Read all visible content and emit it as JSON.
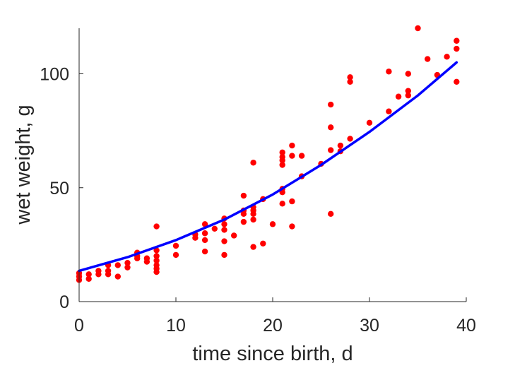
{
  "chart_data": {
    "type": "scatter",
    "title": "",
    "xlabel": "time since birth, d",
    "ylabel": "wet weight, g",
    "xlim": [
      0,
      40
    ],
    "ylim": [
      0,
      120
    ],
    "xticks": [
      0,
      10,
      20,
      30,
      40
    ],
    "yticks": [
      0,
      50,
      100
    ],
    "grid": false,
    "legend": "none",
    "series": [
      {
        "type": "scatter",
        "color": "#ff0000",
        "points": [
          [
            0,
            9.5
          ],
          [
            0,
            11
          ],
          [
            0,
            12.5
          ],
          [
            1,
            10
          ],
          [
            1,
            12
          ],
          [
            2,
            12
          ],
          [
            2,
            13.5
          ],
          [
            3,
            12
          ],
          [
            3,
            13.5
          ],
          [
            3,
            16
          ],
          [
            4,
            11
          ],
          [
            4,
            16
          ],
          [
            5,
            15
          ],
          [
            5,
            17
          ],
          [
            6,
            19
          ],
          [
            6,
            20
          ],
          [
            6,
            21.5
          ],
          [
            7,
            17.5
          ],
          [
            7,
            19
          ],
          [
            8,
            13
          ],
          [
            8,
            14.5
          ],
          [
            8,
            16
          ],
          [
            8,
            18
          ],
          [
            8,
            20
          ],
          [
            8,
            22.5
          ],
          [
            8,
            33
          ],
          [
            10,
            20.5
          ],
          [
            10,
            24.5
          ],
          [
            12,
            28
          ],
          [
            12,
            29.5
          ],
          [
            13,
            22
          ],
          [
            13,
            27
          ],
          [
            13,
            30
          ],
          [
            13,
            34
          ],
          [
            14,
            32
          ],
          [
            15,
            20.5
          ],
          [
            15,
            26.5
          ],
          [
            15,
            31.5
          ],
          [
            15,
            34
          ],
          [
            15,
            36.5
          ],
          [
            16,
            29
          ],
          [
            17,
            35
          ],
          [
            17,
            38.5
          ],
          [
            17,
            40
          ],
          [
            17,
            46.5
          ],
          [
            18,
            24
          ],
          [
            18,
            36
          ],
          [
            18,
            38.5
          ],
          [
            18,
            40
          ],
          [
            18,
            41.5
          ],
          [
            18,
            61
          ],
          [
            19,
            25.5
          ],
          [
            19,
            45
          ],
          [
            20,
            34
          ],
          [
            21,
            43
          ],
          [
            21,
            48
          ],
          [
            21,
            49.5
          ],
          [
            21,
            60
          ],
          [
            21,
            62
          ],
          [
            21,
            63.5
          ],
          [
            21,
            65.5
          ],
          [
            22,
            33
          ],
          [
            22,
            44
          ],
          [
            22,
            64
          ],
          [
            22,
            68.5
          ],
          [
            23,
            55
          ],
          [
            23,
            64
          ],
          [
            25,
            60.5
          ],
          [
            26,
            38.5
          ],
          [
            26,
            66.5
          ],
          [
            26,
            76.5
          ],
          [
            26,
            86.5
          ],
          [
            27,
            66
          ],
          [
            27,
            68.5
          ],
          [
            28,
            71.5
          ],
          [
            28,
            96.5
          ],
          [
            28,
            98.5
          ],
          [
            30,
            78.5
          ],
          [
            32,
            83.5
          ],
          [
            32,
            101
          ],
          [
            33,
            90
          ],
          [
            34,
            90.5
          ],
          [
            34,
            92.5
          ],
          [
            34,
            100
          ],
          [
            35,
            120
          ],
          [
            36,
            106.5
          ],
          [
            37,
            99.5
          ],
          [
            38,
            107.5
          ],
          [
            39,
            96.5
          ],
          [
            39,
            111
          ],
          [
            39,
            114.5
          ]
        ]
      },
      {
        "type": "line",
        "color": "#0000ff",
        "points": [
          [
            0,
            13.5
          ],
          [
            5,
            19.5
          ],
          [
            10,
            27
          ],
          [
            15,
            36
          ],
          [
            20,
            47
          ],
          [
            25,
            60
          ],
          [
            30,
            74.5
          ],
          [
            35,
            90.5
          ],
          [
            39,
            105
          ]
        ]
      }
    ]
  }
}
